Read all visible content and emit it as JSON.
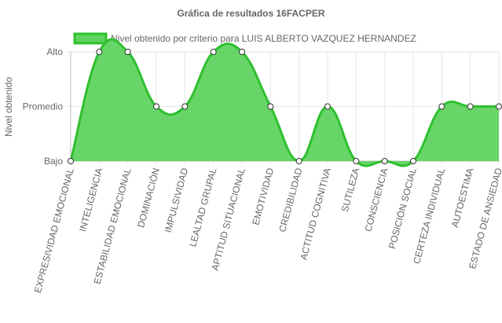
{
  "chart_data": {
    "type": "area",
    "title": "Gráfica de resultados 16FACPER",
    "ylabel": "Nivel obtenido",
    "xlabel": "",
    "y_levels": [
      "Bajo",
      "Promedio",
      "Alto"
    ],
    "ylim": [
      0,
      2
    ],
    "categories": [
      "EXPRESIVIDAD EMOCIONAL",
      "INTELIGENCIA",
      "ESTABILIDAD EMOCIONAL",
      "DOMINACIÓN",
      "IMPULSIVIDAD",
      "LEALTAD GRUPAL",
      "APTITUD SITUACIONAL",
      "EMOTIVIDAD",
      "CREDIBILIDAD",
      "ACTITUD COGNITIVA",
      "SUTILEZA",
      "CONSCIENCIA",
      "POSICIÓN SOCIAL",
      "CERTEZA INDIVIDUAL",
      "AUTOESTIMA",
      "ESTADO DE ANSIEDAD"
    ],
    "series": [
      {
        "name": "Nivel obtenido por criterio para LUIS ALBERTO VAZQUEZ HERNANDEZ",
        "values": [
          "Bajo",
          "Alto",
          "Alto",
          "Promedio",
          "Promedio",
          "Alto",
          "Alto",
          "Promedio",
          "Bajo",
          "Promedio",
          "Bajo",
          "Bajo",
          "Bajo",
          "Promedio",
          "Promedio",
          "Promedio"
        ]
      }
    ],
    "grid": true,
    "legend_position": "top",
    "colors": {
      "fill": "#5fd35f",
      "line": "#2fc02f",
      "point_fill": "#ffffff",
      "point_stroke": "#333333",
      "grid": "#e6e6e6",
      "axis": "#bbbbbb",
      "text": "#666666"
    }
  }
}
